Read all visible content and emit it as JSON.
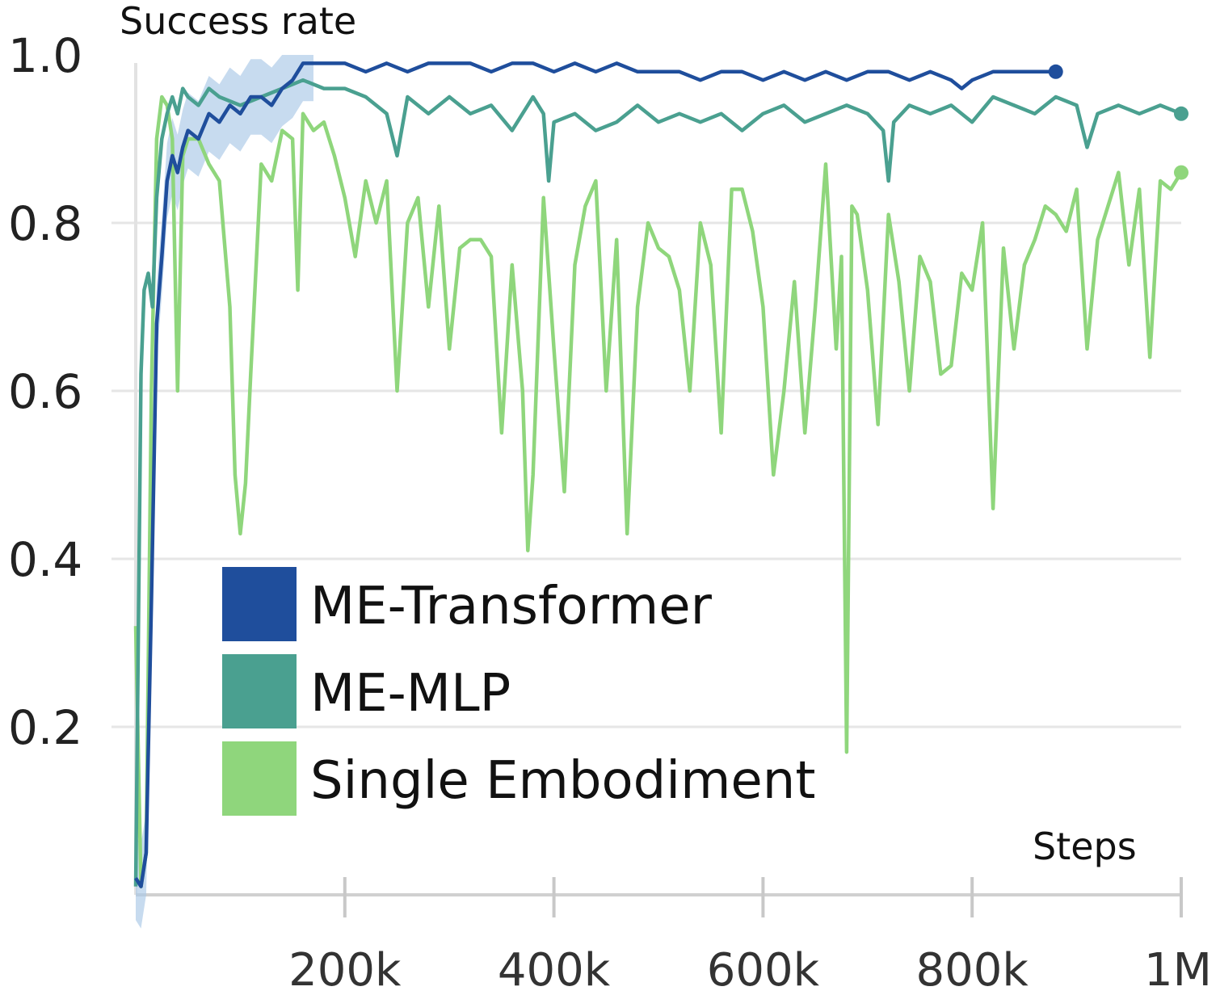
{
  "chart_data": {
    "type": "line",
    "ylabel": "Success rate",
    "xlabel": "Steps",
    "xlim": [
      0,
      1000000
    ],
    "ylim": [
      0,
      1.0
    ],
    "xticks": [
      200000,
      400000,
      600000,
      800000,
      1000000
    ],
    "xtick_labels": [
      "200k",
      "400k",
      "600k",
      "800k",
      "1M"
    ],
    "yticks": [
      0.2,
      0.4,
      0.6,
      0.8,
      1.0
    ],
    "ytick_labels": [
      "0.2",
      "0.4",
      "0.6",
      "0.8",
      "1.0"
    ],
    "grid": true,
    "legend_position": "lower-left",
    "series": [
      {
        "name": "ME-Transformer",
        "color": "#1f4e9c",
        "band_color": "#a9c8e6",
        "x": [
          0,
          5000,
          10000,
          15000,
          20000,
          25000,
          30000,
          35000,
          40000,
          45000,
          50000,
          60000,
          70000,
          80000,
          90000,
          100000,
          110000,
          120000,
          130000,
          140000,
          150000,
          160000,
          170000,
          180000,
          200000,
          220000,
          240000,
          260000,
          280000,
          300000,
          320000,
          340000,
          360000,
          380000,
          400000,
          420000,
          440000,
          460000,
          480000,
          500000,
          520000,
          540000,
          560000,
          580000,
          600000,
          620000,
          640000,
          660000,
          680000,
          700000,
          720000,
          740000,
          760000,
          780000,
          790000,
          800000,
          820000,
          840000,
          860000,
          880000
        ],
        "y": [
          0.02,
          0.01,
          0.05,
          0.35,
          0.68,
          0.76,
          0.85,
          0.88,
          0.86,
          0.89,
          0.91,
          0.9,
          0.93,
          0.92,
          0.94,
          0.93,
          0.95,
          0.95,
          0.94,
          0.96,
          0.97,
          0.99,
          0.99,
          0.99,
          0.99,
          0.98,
          0.99,
          0.98,
          0.99,
          0.99,
          0.99,
          0.98,
          0.99,
          0.99,
          0.98,
          0.99,
          0.98,
          0.99,
          0.98,
          0.98,
          0.98,
          0.97,
          0.98,
          0.98,
          0.97,
          0.98,
          0.97,
          0.98,
          0.97,
          0.98,
          0.98,
          0.97,
          0.98,
          0.97,
          0.96,
          0.97,
          0.98,
          0.98,
          0.98,
          0.98
        ]
      },
      {
        "name": "ME-MLP",
        "color": "#4aa090",
        "x": [
          0,
          5000,
          8000,
          12000,
          16000,
          20000,
          25000,
          30000,
          35000,
          40000,
          45000,
          50000,
          60000,
          70000,
          80000,
          100000,
          120000,
          140000,
          160000,
          180000,
          200000,
          220000,
          240000,
          250000,
          260000,
          280000,
          300000,
          320000,
          340000,
          360000,
          380000,
          390000,
          395000,
          400000,
          420000,
          440000,
          460000,
          480000,
          500000,
          520000,
          540000,
          560000,
          580000,
          600000,
          620000,
          640000,
          660000,
          680000,
          700000,
          715000,
          720000,
          725000,
          740000,
          760000,
          780000,
          800000,
          820000,
          840000,
          860000,
          880000,
          900000,
          910000,
          920000,
          940000,
          960000,
          980000,
          1000000
        ],
        "y": [
          0.01,
          0.62,
          0.72,
          0.74,
          0.7,
          0.83,
          0.9,
          0.93,
          0.95,
          0.93,
          0.96,
          0.95,
          0.94,
          0.96,
          0.95,
          0.94,
          0.95,
          0.96,
          0.97,
          0.96,
          0.96,
          0.95,
          0.93,
          0.88,
          0.95,
          0.93,
          0.95,
          0.93,
          0.94,
          0.91,
          0.95,
          0.93,
          0.85,
          0.92,
          0.93,
          0.91,
          0.92,
          0.94,
          0.92,
          0.93,
          0.92,
          0.93,
          0.91,
          0.93,
          0.94,
          0.92,
          0.93,
          0.94,
          0.93,
          0.91,
          0.85,
          0.92,
          0.94,
          0.93,
          0.94,
          0.92,
          0.95,
          0.94,
          0.93,
          0.95,
          0.94,
          0.89,
          0.93,
          0.94,
          0.93,
          0.94,
          0.93
        ]
      },
      {
        "name": "Single Embodiment",
        "color": "#8fd67c",
        "x": [
          0,
          5000,
          10000,
          15000,
          20000,
          25000,
          30000,
          35000,
          40000,
          45000,
          50000,
          60000,
          70000,
          80000,
          90000,
          95000,
          100000,
          105000,
          110000,
          120000,
          130000,
          140000,
          150000,
          155000,
          160000,
          170000,
          180000,
          190000,
          200000,
          210000,
          220000,
          230000,
          240000,
          250000,
          260000,
          270000,
          280000,
          290000,
          300000,
          310000,
          320000,
          330000,
          340000,
          350000,
          360000,
          370000,
          375000,
          380000,
          390000,
          400000,
          410000,
          420000,
          430000,
          440000,
          450000,
          460000,
          470000,
          480000,
          490000,
          500000,
          510000,
          520000,
          530000,
          540000,
          550000,
          560000,
          570000,
          580000,
          590000,
          600000,
          610000,
          620000,
          630000,
          640000,
          650000,
          660000,
          670000,
          675000,
          680000,
          685000,
          690000,
          700000,
          710000,
          720000,
          730000,
          740000,
          750000,
          760000,
          770000,
          780000,
          790000,
          800000,
          810000,
          820000,
          830000,
          840000,
          850000,
          860000,
          870000,
          880000,
          890000,
          900000,
          910000,
          920000,
          930000,
          940000,
          950000,
          960000,
          970000,
          980000,
          990000,
          1000000
        ],
        "y": [
          0.32,
          0.01,
          0.05,
          0.6,
          0.9,
          0.95,
          0.94,
          0.9,
          0.6,
          0.88,
          0.9,
          0.9,
          0.87,
          0.85,
          0.7,
          0.5,
          0.43,
          0.49,
          0.62,
          0.87,
          0.85,
          0.91,
          0.9,
          0.72,
          0.93,
          0.91,
          0.92,
          0.88,
          0.83,
          0.76,
          0.85,
          0.8,
          0.85,
          0.6,
          0.8,
          0.83,
          0.7,
          0.82,
          0.65,
          0.77,
          0.78,
          0.78,
          0.76,
          0.55,
          0.75,
          0.6,
          0.41,
          0.5,
          0.83,
          0.65,
          0.48,
          0.75,
          0.82,
          0.85,
          0.6,
          0.78,
          0.43,
          0.7,
          0.8,
          0.77,
          0.76,
          0.72,
          0.6,
          0.8,
          0.75,
          0.55,
          0.84,
          0.84,
          0.79,
          0.7,
          0.5,
          0.6,
          0.73,
          0.55,
          0.7,
          0.87,
          0.65,
          0.76,
          0.17,
          0.82,
          0.81,
          0.72,
          0.56,
          0.81,
          0.73,
          0.6,
          0.76,
          0.73,
          0.62,
          0.63,
          0.74,
          0.72,
          0.8,
          0.46,
          0.77,
          0.65,
          0.75,
          0.78,
          0.82,
          0.81,
          0.79,
          0.84,
          0.65,
          0.78,
          0.82,
          0.86,
          0.75,
          0.84,
          0.64,
          0.85,
          0.84,
          0.86
        ]
      }
    ]
  }
}
